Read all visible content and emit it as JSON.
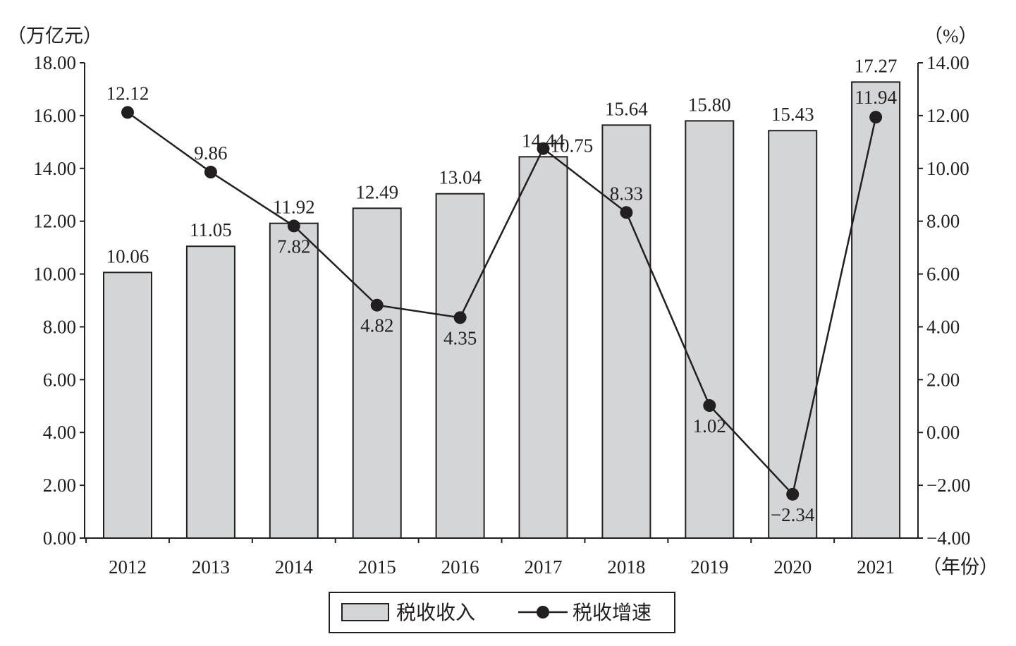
{
  "chart_data": {
    "type": "bar+line",
    "categories": [
      "2012",
      "2013",
      "2014",
      "2015",
      "2016",
      "2017",
      "2018",
      "2019",
      "2020",
      "2021"
    ],
    "series": [
      {
        "name": "税收收入",
        "type": "bar",
        "axis": "left",
        "values": [
          10.06,
          11.05,
          11.92,
          12.49,
          13.04,
          14.44,
          15.64,
          15.8,
          15.43,
          17.27
        ],
        "labels": [
          "10.06",
          "11.05",
          "11.92",
          "12.49",
          "13.04",
          "14.44",
          "15.64",
          "15.80",
          "15.43",
          "17.27"
        ],
        "color": "#d4d5d7"
      },
      {
        "name": "税收增速",
        "type": "line",
        "axis": "right",
        "values": [
          12.12,
          9.86,
          7.82,
          4.82,
          4.35,
          10.75,
          8.33,
          1.02,
          -2.34,
          11.94
        ],
        "labels": [
          "12.12",
          "9.86",
          "7.82",
          "4.82",
          "4.35",
          "10.75",
          "8.33",
          "1.02",
          "−2.34",
          "11.94"
        ],
        "label_placement": [
          "above",
          "above",
          "below",
          "below",
          "below",
          "right",
          "above",
          "below",
          "below",
          "above"
        ],
        "color": "#231f20"
      }
    ],
    "left_axis": {
      "unit": "（万亿元）",
      "range": [
        0,
        18
      ],
      "ticks": [
        "0.00",
        "2.00",
        "4.00",
        "6.00",
        "8.00",
        "10.00",
        "12.00",
        "14.00",
        "16.00",
        "18.00"
      ]
    },
    "right_axis": {
      "unit": "（%）",
      "range": [
        -4,
        14
      ],
      "ticks": [
        "−4.00",
        "−2.00",
        "0.00",
        "2.00",
        "4.00",
        "6.00",
        "8.00",
        "10.00",
        "12.00",
        "14.00"
      ]
    },
    "xlabel": "（年份）",
    "legend": {
      "placement": "bottom-center",
      "entries": [
        "税收收入",
        "税收增速"
      ]
    },
    "grid": false
  }
}
